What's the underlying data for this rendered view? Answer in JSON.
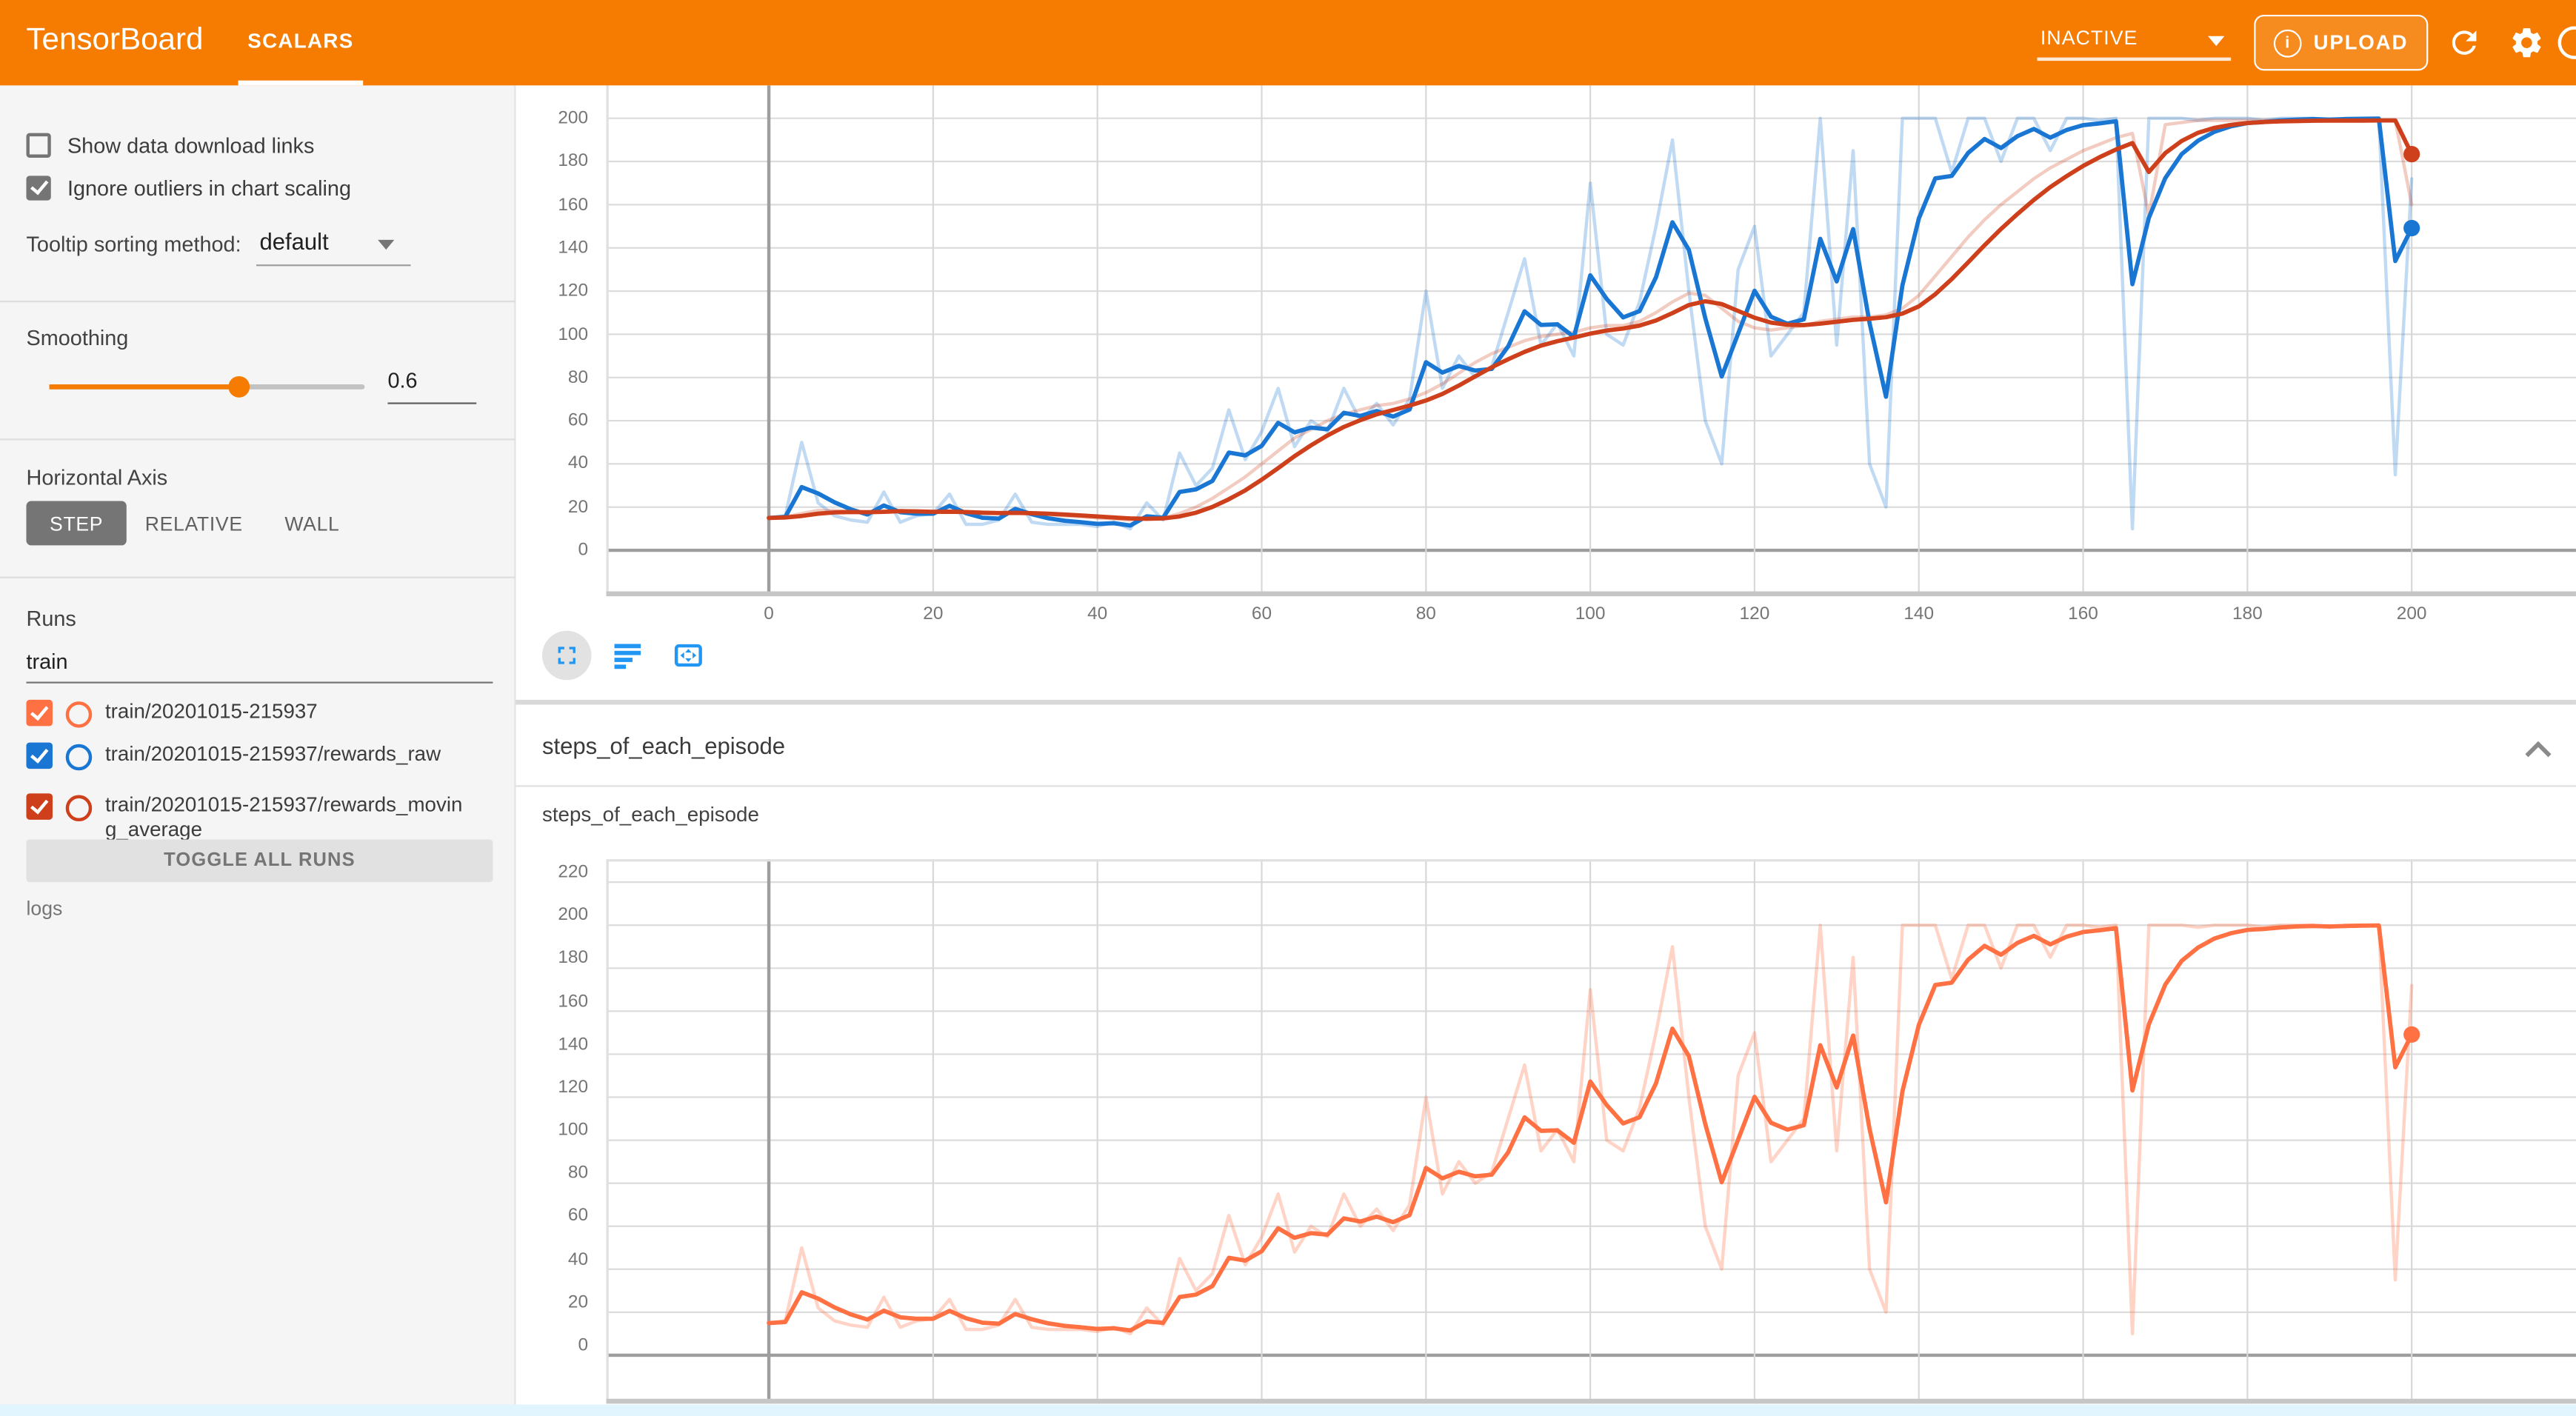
{
  "header": {
    "title": "TensorBoard",
    "tab": "SCALARS",
    "status": "INACTIVE",
    "upload_label": "UPLOAD",
    "icons": {
      "upload": "info-circle-icon",
      "refresh": "refresh-icon",
      "settings": "gear-icon",
      "help": "circle-icon"
    }
  },
  "sidebar": {
    "checkboxes": [
      {
        "label": "Show data download links",
        "checked": false
      },
      {
        "label": "Ignore outliers in chart scaling",
        "checked": true
      }
    ],
    "tooltip_sorting": {
      "label": "Tooltip sorting method:",
      "value": "default"
    },
    "smoothing": {
      "label": "Smoothing",
      "value": "0.6"
    },
    "horizontal_axis": {
      "label": "Horizontal Axis",
      "options": [
        "STEP",
        "RELATIVE",
        "WALL"
      ],
      "selected": "STEP"
    },
    "runs": {
      "label": "Runs",
      "filter_value": "train",
      "items": [
        {
          "label": "train/20201015-215937",
          "color": "#ff7043",
          "checked": true
        },
        {
          "label": "train/20201015-215937/rewards_raw",
          "color": "#1976d2",
          "checked": true
        },
        {
          "label": "train/20201015-215937/rewards_moving_average",
          "color": "#ce3f1b",
          "checked": true
        }
      ],
      "toggle_all_label": "TOGGLE ALL RUNS",
      "footer": "logs"
    }
  },
  "main": {
    "section_title": "steps_of_each_episode",
    "card_title": "steps_of_each_episode",
    "toolbar_icons": [
      "fullscreen-icon",
      "log-lines-icon",
      "fit-domain-icon"
    ]
  },
  "chart_data": [
    {
      "id": "rewards",
      "type": "line",
      "title": "",
      "x_start": 0,
      "x_step": 2,
      "x_tick_labels": [
        "0",
        "20",
        "40",
        "60",
        "80",
        "100",
        "120",
        "140",
        "160",
        "180",
        "200"
      ],
      "y_tick_labels": [
        "0",
        "20",
        "40",
        "60",
        "80",
        "100",
        "120",
        "140",
        "160",
        "180",
        "200"
      ],
      "xlim": [
        -20,
        220
      ],
      "ylim": [
        -15,
        215
      ],
      "smoothing": 0.6,
      "grid": true,
      "legend_position": "none",
      "series": [
        {
          "name": "train/20201015-215937/rewards_raw",
          "color": "#1976d2",
          "values": [
            15,
            16,
            50,
            22,
            16,
            14,
            13,
            27,
            13,
            16,
            17,
            26,
            12,
            12,
            14,
            26,
            13,
            12,
            12,
            12,
            11,
            13,
            10,
            22,
            14,
            45,
            30,
            38,
            65,
            42,
            55,
            75,
            48,
            60,
            55,
            75,
            60,
            68,
            58,
            70,
            120,
            75,
            90,
            80,
            85,
            110,
            135,
            95,
            105,
            90,
            170,
            100,
            95,
            115,
            150,
            190,
            120,
            60,
            40,
            130,
            150,
            90,
            100,
            110,
            200,
            95,
            185,
            40,
            20,
            200,
            200,
            200,
            175,
            200,
            200,
            180,
            200,
            200,
            185,
            200,
            200,
            199,
            200,
            10,
            200,
            200,
            200,
            199,
            200,
            200,
            200,
            199,
            200,
            200,
            200,
            199,
            200,
            200,
            200,
            35,
            172
          ]
        },
        {
          "name": "train/20201015-215937/rewards_moving_average",
          "color": "#ce3f1b",
          "values": [
            15,
            15.5,
            17,
            18.5,
            18.5,
            18,
            17.5,
            18,
            18.5,
            18,
            17.5,
            18,
            17.5,
            17,
            17,
            17.5,
            17,
            16.5,
            16,
            15.5,
            15,
            14.5,
            14,
            14.5,
            15,
            17,
            20,
            24,
            29,
            34,
            40,
            46,
            52,
            56,
            60,
            63,
            65,
            67,
            68,
            70,
            73,
            77,
            82,
            87,
            91,
            94,
            97,
            99,
            100,
            101,
            103,
            104,
            104,
            106,
            110,
            115,
            119,
            118,
            112,
            106,
            103,
            102,
            103,
            104,
            106,
            107,
            108,
            108,
            109,
            112,
            118,
            127,
            136,
            145,
            153,
            160,
            166,
            172,
            177,
            181,
            185,
            188,
            191,
            193,
            155,
            197,
            198,
            199,
            199,
            199,
            199,
            199,
            199,
            199,
            199,
            199,
            199,
            199,
            199,
            199,
            160
          ]
        }
      ]
    },
    {
      "id": "steps_of_each_episode",
      "type": "line",
      "title": "steps_of_each_episode",
      "x_start": 0,
      "x_step": 2,
      "x_tick_labels": [],
      "y_tick_labels": [
        "0",
        "20",
        "40",
        "60",
        "80",
        "100",
        "120",
        "140",
        "160",
        "180",
        "200",
        "220"
      ],
      "xlim": [
        -20,
        220
      ],
      "ylim": [
        -15,
        235
      ],
      "smoothing": 0.6,
      "grid": true,
      "legend_position": "none",
      "series": [
        {
          "name": "train/20201015-215937",
          "color": "#ff7043",
          "values": [
            15,
            16,
            50,
            22,
            16,
            14,
            13,
            27,
            13,
            16,
            17,
            26,
            12,
            12,
            14,
            26,
            13,
            12,
            12,
            12,
            11,
            13,
            10,
            22,
            14,
            45,
            30,
            38,
            65,
            42,
            55,
            75,
            48,
            60,
            55,
            75,
            60,
            68,
            58,
            70,
            120,
            75,
            90,
            80,
            85,
            110,
            135,
            95,
            105,
            90,
            170,
            100,
            95,
            115,
            150,
            190,
            120,
            60,
            40,
            130,
            150,
            90,
            100,
            110,
            200,
            95,
            185,
            40,
            20,
            200,
            200,
            200,
            175,
            200,
            200,
            180,
            200,
            200,
            185,
            200,
            200,
            199,
            200,
            10,
            200,
            200,
            200,
            199,
            200,
            200,
            200,
            199,
            200,
            200,
            200,
            199,
            200,
            200,
            200,
            35,
            172
          ]
        }
      ]
    }
  ]
}
